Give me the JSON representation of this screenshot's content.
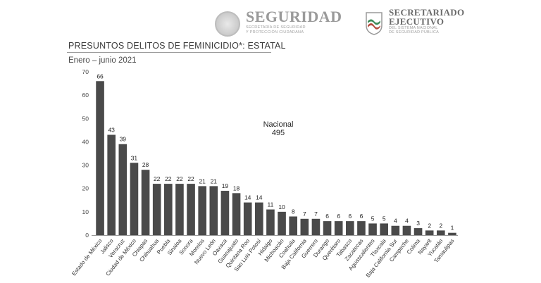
{
  "header": {
    "seguridad": {
      "name": "SEGURIDAD",
      "sub1": "SECRETARÍA DE SEGURIDAD",
      "sub2": "Y PROTECCIÓN CIUDADANA"
    },
    "secretariado": {
      "line1": "SECRETARIADO",
      "line2": "EJECUTIVO",
      "sub1": "DEL SISTEMA NACIONAL",
      "sub2": "DE SEGURIDAD PÚBLICA"
    }
  },
  "colors": {
    "bar": "#4a4a4a",
    "axis": "#999999",
    "text": "#333333"
  },
  "chart_data": {
    "type": "bar",
    "title": "PRESUNTOS DELITOS DE FEMINICIDIO*: ESTATAL",
    "subtitle": "Enero – junio 2021",
    "annotation": {
      "label": "Nacional",
      "value": "495"
    },
    "ylim": [
      0,
      70
    ],
    "yticks": [
      0,
      10,
      20,
      30,
      40,
      50,
      60,
      70
    ],
    "categories": [
      "Estado de México",
      "Jalisco",
      "Veracruz",
      "Ciudad de México",
      "Chiapas",
      "Chihuahua",
      "Puebla",
      "Sinaloa",
      "Sonora",
      "Morelos",
      "Nuevo León",
      "Oaxaca",
      "Guanajuato",
      "Quintana Roo",
      "San Luis Potosí",
      "Hidalgo",
      "Michoacán",
      "Coahuila",
      "Baja California",
      "Guerrero",
      "Durango",
      "Querétaro",
      "Tabasco",
      "Zacatecas",
      "Aguascalientes",
      "Tlaxcala",
      "Baja California Sur",
      "Campeche",
      "Colima",
      "Nayarit",
      "Yucatán",
      "Tamaulipas"
    ],
    "values": [
      66,
      43,
      39,
      31,
      28,
      22,
      22,
      22,
      22,
      21,
      21,
      19,
      18,
      14,
      14,
      11,
      10,
      8,
      7,
      7,
      6,
      6,
      6,
      6,
      5,
      5,
      4,
      4,
      3,
      2,
      2,
      1
    ],
    "grid": false,
    "legend": "none"
  }
}
